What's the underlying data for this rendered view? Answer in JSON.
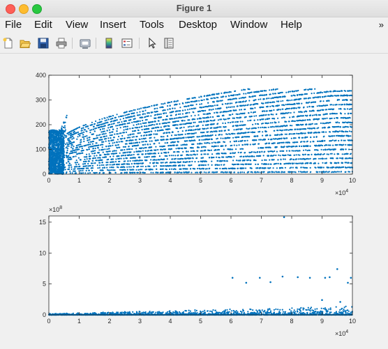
{
  "window": {
    "title": "Figure 1"
  },
  "menu": [
    "File",
    "Edit",
    "View",
    "Insert",
    "Tools",
    "Desktop",
    "Window",
    "Help"
  ],
  "menu_more": "»",
  "toolbar": [
    {
      "icon": "new-figure-icon"
    },
    {
      "icon": "open-file-icon"
    },
    {
      "icon": "save-icon"
    },
    {
      "icon": "print-icon"
    },
    {
      "icon": "link-plot-icon"
    },
    {
      "icon": "insert-colorbar-icon"
    },
    {
      "icon": "insert-legend-icon"
    },
    {
      "icon": "edit-plot-icon"
    },
    {
      "icon": "property-inspector-icon"
    }
  ],
  "chart_data": [
    {
      "type": "scatter",
      "title": "",
      "xlabel": "",
      "ylabel": "",
      "xlim": [
        0,
        100000
      ],
      "ylim": [
        0,
        400
      ],
      "xticks": [
        "0",
        "1",
        "2",
        "3",
        "4",
        "5",
        "6",
        "7",
        "8",
        "9",
        "10"
      ],
      "yticks": [
        "0",
        "100",
        "200",
        "300",
        "400"
      ],
      "x_exponent_label": "×10",
      "x_exponent_power": "4",
      "marker_color": "#0072bd",
      "series_description_note": ""
    },
    {
      "type": "scatter",
      "title": "",
      "xlabel": "",
      "ylabel": "",
      "xlim": [
        0,
        100000
      ],
      "ylim": [
        0,
        1600000000
      ],
      "xticks": [
        "0",
        "1",
        "2",
        "3",
        "4",
        "5",
        "6",
        "7",
        "8",
        "9",
        "10"
      ],
      "yticks": [
        "0",
        "5",
        "10",
        "15"
      ],
      "x_exponent_label": "×10",
      "x_exponent_power": "4",
      "y_exponent_label": "×10",
      "y_exponent_power": "8",
      "marker_color": "#0072bd",
      "outliers": [
        {
          "x": 77500,
          "y": 1580000000
        },
        {
          "x": 60500,
          "y": 600000000
        },
        {
          "x": 65000,
          "y": 520000000
        },
        {
          "x": 69500,
          "y": 600000000
        },
        {
          "x": 73000,
          "y": 530000000
        },
        {
          "x": 77000,
          "y": 620000000
        },
        {
          "x": 82000,
          "y": 610000000
        },
        {
          "x": 86000,
          "y": 600000000
        },
        {
          "x": 91000,
          "y": 600000000
        },
        {
          "x": 92500,
          "y": 610000000
        },
        {
          "x": 95000,
          "y": 740000000
        },
        {
          "x": 98500,
          "y": 520000000
        },
        {
          "x": 99500,
          "y": 600000000
        },
        {
          "x": 90000,
          "y": 240000000
        },
        {
          "x": 96000,
          "y": 210000000
        }
      ]
    }
  ]
}
